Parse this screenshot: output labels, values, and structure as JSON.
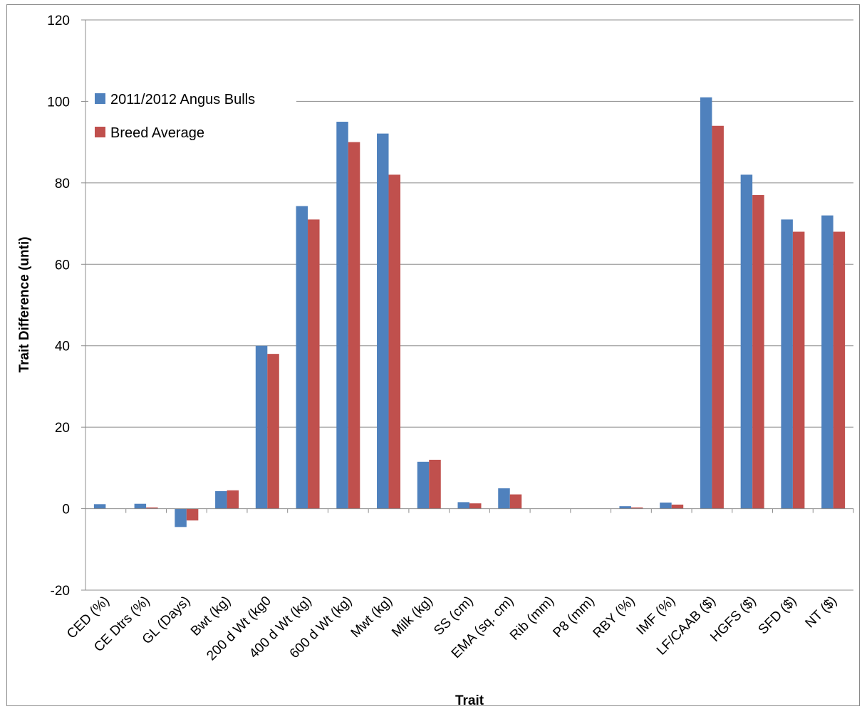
{
  "chart_data": {
    "type": "bar",
    "title": "",
    "xlabel": "Trait",
    "ylabel": "Trait Difference (unti)",
    "ylim": [
      -20,
      120
    ],
    "yticks": [
      -20,
      0,
      20,
      40,
      60,
      80,
      100,
      120
    ],
    "grid": true,
    "legend_position": "top-left",
    "categories": [
      "CED (%)",
      "CE Dtrs (%)",
      "GL (Days)",
      "Bwt (kg)",
      "200 d Wt (kg0",
      "400 d Wt (kg)",
      "600 d Wt (kg)",
      "Mwt (kg)",
      "Milk (kg)",
      "SS (cm)",
      "EMA (sq. cm)",
      "Rib (mm)",
      "P8 (mm)",
      "RBY (%)",
      "IMF (%)",
      "LF/CAAB ($)",
      "HGFS ($)",
      "SFD ($)",
      "NT ($)"
    ],
    "series": [
      {
        "name": "2011/2012 Angus Bulls",
        "color": "#4f81bd",
        "values": [
          1.1,
          1.2,
          -4.5,
          4.3,
          40,
          74.3,
          95,
          92.1,
          11.5,
          1.6,
          5,
          0,
          0,
          0.6,
          1.5,
          101,
          82,
          71,
          72
        ]
      },
      {
        "name": "Breed Average",
        "color": "#c0504d",
        "values": [
          0,
          0.3,
          -2.9,
          4.5,
          38,
          71,
          90,
          82,
          12,
          1.3,
          3.5,
          0,
          0,
          0.3,
          1,
          94,
          77,
          68,
          68
        ]
      }
    ]
  }
}
